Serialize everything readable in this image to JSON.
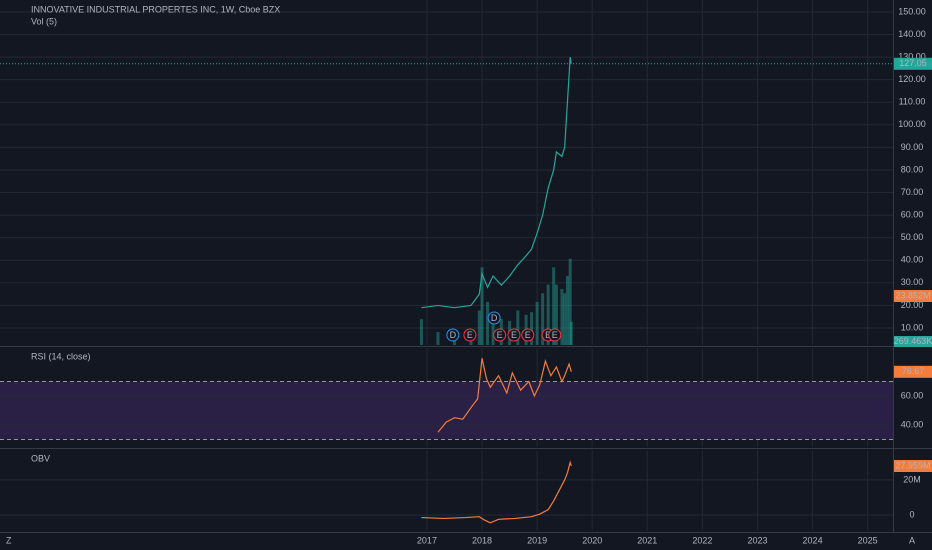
{
  "chart_data": [
    {
      "type": "line",
      "title": "INNOVATIVE INDUSTRIAL PROPERTES INC, 1W, Cboe BZX",
      "subtitle": "Vol (5)",
      "xlim": [
        2009.25,
        2025.46
      ],
      "ylim": [
        2.47,
        155.3
      ],
      "yticks": [
        {
          "value": 10,
          "label": "10.00"
        },
        {
          "value": 20,
          "label": "20.00"
        },
        {
          "value": 30,
          "label": "30.00"
        },
        {
          "value": 40,
          "label": "40.00"
        },
        {
          "value": 50,
          "label": "50.00"
        },
        {
          "value": 60,
          "label": "60.00"
        },
        {
          "value": 70,
          "label": "70.00"
        },
        {
          "value": 80,
          "label": "80.00"
        },
        {
          "value": 90,
          "label": "90.00"
        },
        {
          "value": 100,
          "label": "100.00"
        },
        {
          "value": 110,
          "label": "110.00"
        },
        {
          "value": 120,
          "label": "120.00"
        },
        {
          "value": 130,
          "label": "130.00"
        },
        {
          "value": 140,
          "label": "140.00"
        },
        {
          "value": 150,
          "label": "150.00"
        }
      ],
      "y2lim": [
        0,
        4000000
      ],
      "x": [
        2016.9,
        2017.2,
        2017.5,
        2017.8,
        2017.95,
        2018.0,
        2018.1,
        2018.2,
        2018.35,
        2018.5,
        2018.65,
        2018.8,
        2018.9,
        2019.0,
        2019.1,
        2019.2,
        2019.3,
        2019.35,
        2019.45,
        2019.5,
        2019.55,
        2019.6,
        2019.62
      ],
      "series": [
        {
          "color": "#26a69a",
          "values": [
            19,
            20,
            19,
            20,
            25,
            34,
            28,
            33,
            29,
            33,
            38,
            42,
            45,
            52,
            60,
            72,
            80,
            88,
            86,
            90,
            110,
            130,
            127.05
          ]
        },
        {
          "axis": "y2",
          "color": "#26a69a",
          "values": [
            300000,
            150000,
            120000,
            130000,
            400000,
            900000,
            500000,
            350000,
            300000,
            280000,
            400000,
            350000,
            380000,
            500000,
            600000,
            700000,
            900000,
            700000,
            650000,
            600000,
            800000,
            1000000,
            269463
          ],
          "last_label": "269.463K"
        }
      ],
      "volume_ma_label": "23.852M",
      "events": [
        {
          "x": 2017.47,
          "label": "D"
        },
        {
          "x": 2017.78,
          "label": "E"
        },
        {
          "x": 2018.22,
          "label": "D"
        },
        {
          "x": 2018.32,
          "label": "E"
        },
        {
          "x": 2018.58,
          "label": "E"
        },
        {
          "x": 2018.83,
          "label": "E"
        },
        {
          "x": 2019.2,
          "label": "E"
        },
        {
          "x": 2019.32,
          "label": "E"
        }
      ]
    },
    {
      "type": "line",
      "title": "RSI (14, close)",
      "xlim": [
        2009.25,
        2025.46
      ],
      "ylim": [
        24.8,
        93.1
      ],
      "yticks": [
        {
          "value": 40,
          "label": "40.00"
        },
        {
          "value": 60,
          "label": "60.00"
        }
      ],
      "hlines": [
        70,
        30
      ],
      "band_color": "#2a1f45",
      "x": [
        2017.2,
        2017.35,
        2017.5,
        2017.65,
        2017.8,
        2017.92,
        2018.0,
        2018.08,
        2018.15,
        2018.3,
        2018.45,
        2018.55,
        2018.7,
        2018.85,
        2018.95,
        2019.05,
        2019.15,
        2019.25,
        2019.35,
        2019.45,
        2019.5,
        2019.58,
        2019.62
      ],
      "series": [
        {
          "color": "#f57c3a",
          "values": [
            35,
            42,
            45,
            44,
            52,
            58,
            86,
            72,
            66,
            74,
            62,
            76,
            64,
            70,
            60,
            68,
            84,
            74,
            80,
            70,
            74,
            82,
            76.67
          ]
        }
      ]
    },
    {
      "type": "line",
      "title": "OBV",
      "xlim": [
        2009.25,
        2025.46
      ],
      "ylim": [
        -8600000,
        37100000
      ],
      "yticks": [
        0,
        {
          "value": 20000000,
          "label": "20M"
        }
      ],
      "xticks": [
        2017,
        2018,
        2019,
        2020,
        2021,
        2022,
        2023,
        2024,
        2025
      ],
      "x": [
        2016.9,
        2017.3,
        2017.7,
        2017.95,
        2018.05,
        2018.15,
        2018.3,
        2018.6,
        2018.9,
        2019.05,
        2019.2,
        2019.3,
        2019.4,
        2019.5,
        2019.55,
        2019.6,
        2019.62
      ],
      "series": [
        {
          "color": "#f57c3a",
          "values": [
            -1500000,
            -2000000,
            -1500000,
            -1000000,
            -3000000,
            -4500000,
            -2500000,
            -2000000,
            -1000000,
            500000,
            3000000,
            8000000,
            14000000,
            20000000,
            24000000,
            30000000,
            27959000
          ],
          "last_label": "27.959M"
        }
      ]
    }
  ]
}
